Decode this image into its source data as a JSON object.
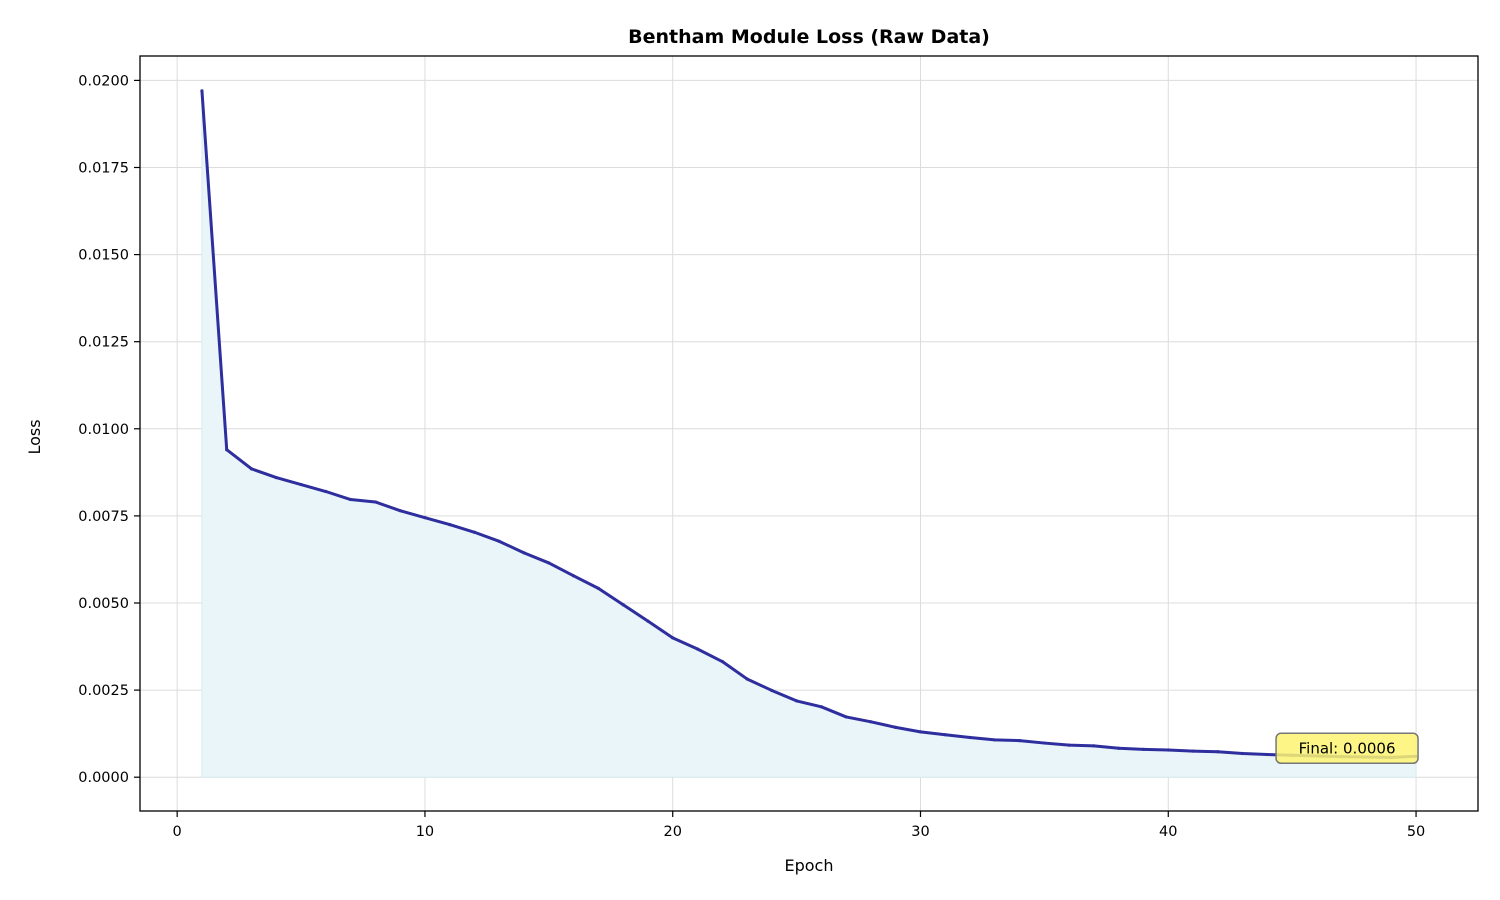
{
  "chart_data": {
    "type": "area",
    "title": "Bentham Module Loss (Raw Data)",
    "xlabel": "Epoch",
    "ylabel": "Loss",
    "xlim": [
      -1.5,
      52.5
    ],
    "ylim": [
      -0.00097,
      0.0207
    ],
    "xticks": [
      0,
      10,
      20,
      30,
      40,
      50
    ],
    "xtick_labels": [
      "0",
      "10",
      "20",
      "30",
      "40",
      "50"
    ],
    "yticks": [
      0.0,
      0.0025,
      0.005,
      0.0075,
      0.01,
      0.0125,
      0.015,
      0.0175,
      0.02
    ],
    "ytick_labels": [
      "0.0000",
      "0.0025",
      "0.0050",
      "0.0075",
      "0.0100",
      "0.0125",
      "0.0150",
      "0.0175",
      "0.0200"
    ],
    "grid": true,
    "series": [
      {
        "x": [
          1,
          2,
          3,
          4,
          5,
          6,
          7,
          8,
          9,
          10,
          11,
          12,
          13,
          14,
          15,
          16,
          17,
          18,
          19,
          20,
          21,
          22,
          23,
          24,
          25,
          26,
          27,
          28,
          29,
          30,
          31,
          32,
          33,
          34,
          35,
          36,
          37,
          38,
          39,
          40,
          41,
          42,
          43,
          44,
          45,
          46,
          47,
          48,
          49,
          50
        ],
        "values": [
          0.0197,
          0.0094,
          0.00885,
          0.0086,
          0.0084,
          0.0082,
          0.00797,
          0.0079,
          0.00765,
          0.00745,
          0.00725,
          0.00703,
          0.00677,
          0.00644,
          0.00615,
          0.00578,
          0.00542,
          0.00495,
          0.00448,
          0.004,
          0.00368,
          0.00332,
          0.00282,
          0.00249,
          0.00219,
          0.00202,
          0.00173,
          0.00159,
          0.00143,
          0.0013,
          0.00122,
          0.00114,
          0.00107,
          0.00105,
          0.00098,
          0.00092,
          0.0009,
          0.00083,
          0.0008,
          0.00078,
          0.00075,
          0.00073,
          0.00068,
          0.00065,
          0.00063,
          0.00061,
          0.00059,
          0.00058,
          0.00057,
          0.0006
        ],
        "line_color": "#2e2e9e",
        "fill_color": "#e9f5f8"
      }
    ],
    "annotation": {
      "text": "Final: 0.0006",
      "x": 50,
      "y": 0.0006,
      "box_color": "#fdf472",
      "box_edge": "#777777"
    },
    "colors": {
      "grid": "#dcdcdc",
      "axes": "#000000"
    }
  }
}
